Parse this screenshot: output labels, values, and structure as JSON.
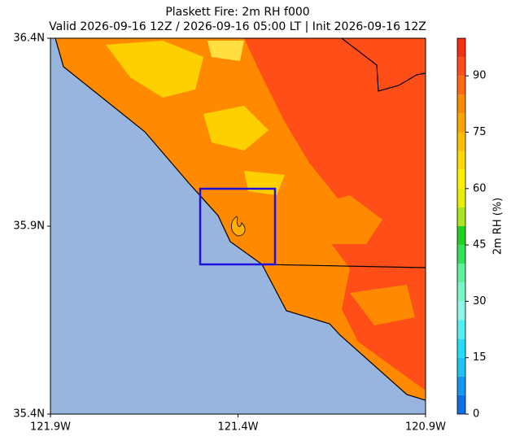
{
  "title": "Plaskett Fire: 2m RH f000",
  "subtitle": "Valid 2026-09-16 12Z / 2026-09-16 05:00 LT | Init 2026-09-16 12Z",
  "map": {
    "xlim": [
      -121.9,
      -120.9
    ],
    "ylim": [
      35.4,
      36.4
    ],
    "xticks": [
      {
        "value": -121.9,
        "label": "121.9W"
      },
      {
        "value": -121.4,
        "label": "121.4W"
      },
      {
        "value": -120.9,
        "label": "120.9W"
      }
    ],
    "yticks": [
      {
        "value": 35.4,
        "label": "35.4N"
      },
      {
        "value": 35.9,
        "label": "35.9N"
      },
      {
        "value": 36.4,
        "label": "36.4N"
      }
    ]
  },
  "colorbar": {
    "label": "2m RH (%)",
    "lim": [
      0,
      100
    ],
    "ticks": [
      0,
      15,
      30,
      45,
      60,
      75,
      90
    ],
    "levels": [
      0,
      5,
      10,
      15,
      20,
      25,
      30,
      35,
      40,
      45,
      50,
      55,
      60,
      65,
      70,
      75,
      80,
      85,
      90,
      95,
      100
    ],
    "colors": [
      "#0a6fe8",
      "#1596f0",
      "#1ec3f5",
      "#25ddf8",
      "#55eef5",
      "#8ff7ea",
      "#7af5c8",
      "#5ef09a",
      "#34e05a",
      "#22d022",
      "#a8e81a",
      "#e8f000",
      "#fff000",
      "#ffd800",
      "#ffbe00",
      "#ffa400",
      "#ff8a00",
      "#ff6a10",
      "#ff4e18",
      "#f53010"
    ]
  }
}
